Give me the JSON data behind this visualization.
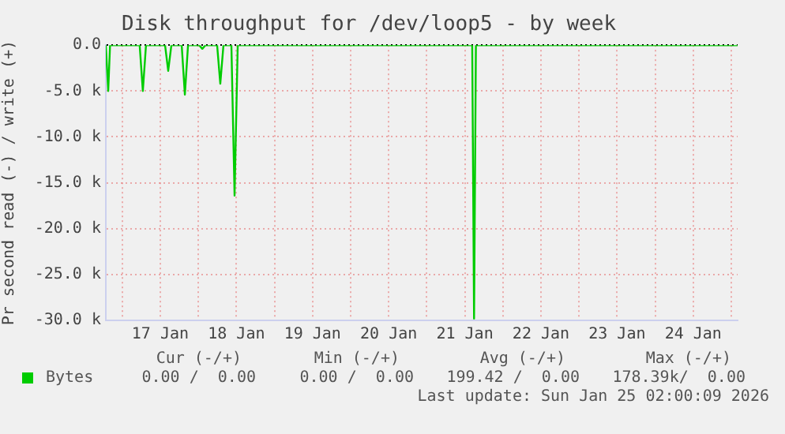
{
  "chart_data": {
    "type": "line",
    "title": "Disk throughput for /dev/loop5 - by week",
    "ylabel": "Pr second read (-) / write (+)",
    "x": [
      "2026-01-16T18:50",
      "2026-01-16T19:00",
      "2026-01-16T19:35",
      "2026-01-16T20:10",
      "2026-01-17T05:30",
      "2026-01-17T06:30",
      "2026-01-17T07:30",
      "2026-01-17T13:30",
      "2026-01-17T14:30",
      "2026-01-17T15:30",
      "2026-01-17T18:45",
      "2026-01-17T19:45",
      "2026-01-17T20:45",
      "2026-01-18T00:15",
      "2026-01-18T01:15",
      "2026-01-18T02:15",
      "2026-01-18T05:55",
      "2026-01-18T06:55",
      "2026-01-18T07:55",
      "2026-01-18T10:25",
      "2026-01-18T11:25",
      "2026-01-18T12:25",
      "2026-01-21T14:20",
      "2026-01-21T14:55",
      "2026-01-21T15:30",
      "2026-01-25T02:00"
    ],
    "series": [
      {
        "name": "Bytes",
        "color": "#00cc00",
        "values": [
          0,
          0,
          -5000,
          0,
          0,
          -5000,
          0,
          0,
          -2800,
          0,
          0,
          -5400,
          0,
          0,
          -400,
          0,
          0,
          -4200,
          0,
          0,
          -16400,
          0,
          0,
          -29800,
          0,
          0
        ]
      }
    ],
    "xlim": [
      "2026-01-16T18:50",
      "2026-01-25T02:00"
    ],
    "xticks": [
      {
        "value": "2026-01-17T00:00",
        "label": null
      },
      {
        "value": "2026-01-17T12:00",
        "label": "17 Jan"
      },
      {
        "value": "2026-01-18T00:00",
        "label": null
      },
      {
        "value": "2026-01-18T12:00",
        "label": "18 Jan"
      },
      {
        "value": "2026-01-19T00:00",
        "label": null
      },
      {
        "value": "2026-01-19T12:00",
        "label": "19 Jan"
      },
      {
        "value": "2026-01-20T00:00",
        "label": null
      },
      {
        "value": "2026-01-20T12:00",
        "label": "20 Jan"
      },
      {
        "value": "2026-01-21T00:00",
        "label": null
      },
      {
        "value": "2026-01-21T12:00",
        "label": "21 Jan"
      },
      {
        "value": "2026-01-22T00:00",
        "label": null
      },
      {
        "value": "2026-01-22T12:00",
        "label": "22 Jan"
      },
      {
        "value": "2026-01-23T00:00",
        "label": null
      },
      {
        "value": "2026-01-23T12:00",
        "label": "23 Jan"
      },
      {
        "value": "2026-01-24T00:00",
        "label": null
      },
      {
        "value": "2026-01-24T12:00",
        "label": "24 Jan"
      },
      {
        "value": "2026-01-25T00:00",
        "label": null
      }
    ],
    "ylim": [
      -30000,
      0
    ],
    "yticks": [
      {
        "value": -30000,
        "label": "-30.0 k"
      },
      {
        "value": -25000,
        "label": "-25.0 k"
      },
      {
        "value": -20000,
        "label": "-20.0 k"
      },
      {
        "value": -15000,
        "label": "-15.0 k"
      },
      {
        "value": -10000,
        "label": "-10.0 k"
      },
      {
        "value": -5000,
        "label": "-5.0 k"
      },
      {
        "value": 0,
        "label": "0.0"
      }
    ],
    "grid": true,
    "legend": "bottom left",
    "marker": "none",
    "line_style": "solid",
    "annotations": [
      "Cur (-/+)",
      "Min (-/+)",
      "Avg (-/+)",
      "Max (-/+)",
      "0.00 /  0.00",
      "0.00 /  0.00",
      "199.42 /  0.00",
      "178.39k/  0.00",
      "Last update: Sun Jan 25 02:00:09 2026"
    ]
  }
}
